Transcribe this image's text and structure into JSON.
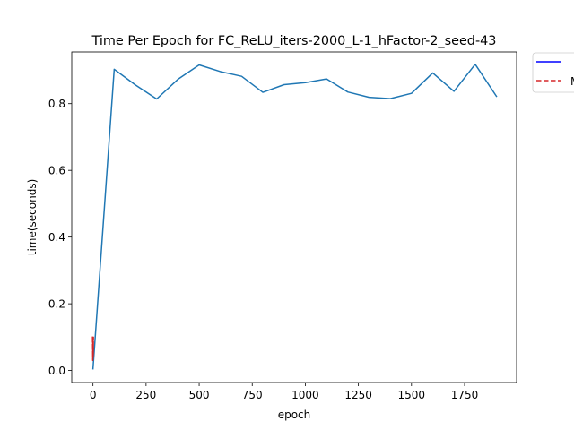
{
  "chart_data": {
    "type": "line",
    "title": "Time Per Epoch for FC_ReLU_iters-2000_L-1_hFactor-2_seed-43",
    "xlabel": "epoch",
    "ylabel": "time(seconds)",
    "xlim": [
      -100,
      1995
    ],
    "ylim": [
      -0.036,
      0.955
    ],
    "xticks": [
      0,
      250,
      500,
      750,
      1000,
      1250,
      1500,
      1750
    ],
    "yticks": [
      0.0,
      0.2,
      0.4,
      0.6,
      0.8
    ],
    "xtick_labels": [
      "0",
      "250",
      "500",
      "750",
      "1000",
      "1250",
      "1500",
      "1750"
    ],
    "ytick_labels": [
      "0.0",
      "0.2",
      "0.4",
      "0.6",
      "0.8"
    ],
    "legend": {
      "placement": "outside-top-right",
      "entries": [
        {
          "label": "",
          "color": "#0000ff",
          "style": "solid"
        },
        {
          "label": "M",
          "color": "#d62728",
          "style": "dashed"
        }
      ]
    },
    "series": [
      {
        "color": "#1f77b4",
        "style": "solid",
        "x": [
          0,
          100,
          200,
          300,
          400,
          500,
          600,
          700,
          800,
          900,
          1000,
          1100,
          1200,
          1300,
          1400,
          1500,
          1600,
          1700,
          1800,
          1900
        ],
        "y": [
          0.005,
          0.903,
          0.856,
          0.814,
          0.873,
          0.916,
          0.896,
          0.882,
          0.834,
          0.857,
          0.863,
          0.874,
          0.835,
          0.819,
          0.815,
          0.831,
          0.892,
          0.837,
          0.918,
          0.822
        ]
      },
      {
        "color": "#d62728",
        "style": "dashed",
        "x": [
          -2,
          -1,
          0,
          1,
          2,
          1,
          0
        ],
        "y": [
          0.1,
          0.03,
          0.09,
          0.06,
          0.1,
          0.04,
          0.08
        ]
      }
    ]
  }
}
